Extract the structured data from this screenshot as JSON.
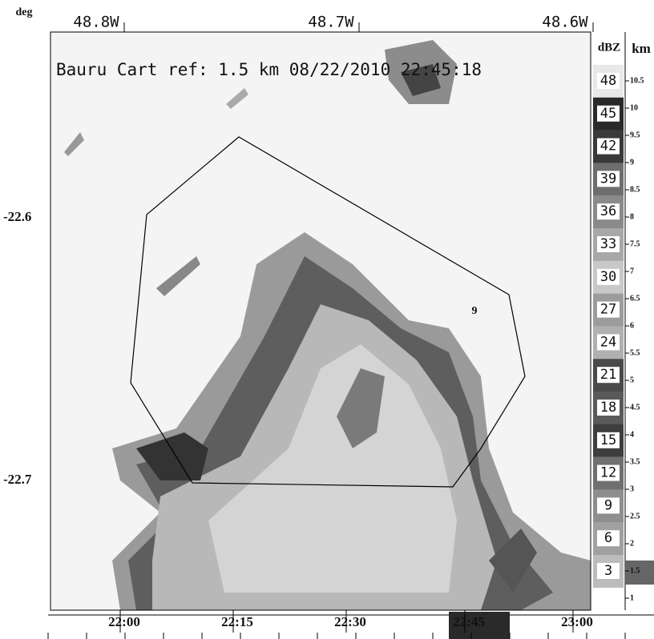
{
  "header": {
    "corner": "deg",
    "title": "Bauru Cart ref: 1.5 km 08/22/2010 22:45:18"
  },
  "longitude_labels": [
    "48.8W",
    "48.7W",
    "48.6W"
  ],
  "latitude_labels": [
    "-22.6",
    "-22.7"
  ],
  "marker_label": "9",
  "legend": {
    "title": "dBZ",
    "levels": [
      "48",
      "45",
      "42",
      "39",
      "36",
      "33",
      "30",
      "27",
      "24",
      "21",
      "18",
      "15",
      "12",
      "9",
      "6",
      "3"
    ]
  },
  "height_scale": {
    "title": "km",
    "labels": [
      "10.5",
      "10",
      "9.5",
      "9",
      "8.5",
      "8",
      "7.5",
      "7",
      "6.5",
      "6",
      "5.5",
      "5",
      "4.5",
      "4",
      "3.5",
      "3",
      "2.5",
      "2",
      "1.5",
      "1"
    ]
  },
  "time_axis": {
    "labels": [
      "22:00",
      "22:15",
      "22:30",
      "22:45",
      "23:00"
    ]
  }
}
